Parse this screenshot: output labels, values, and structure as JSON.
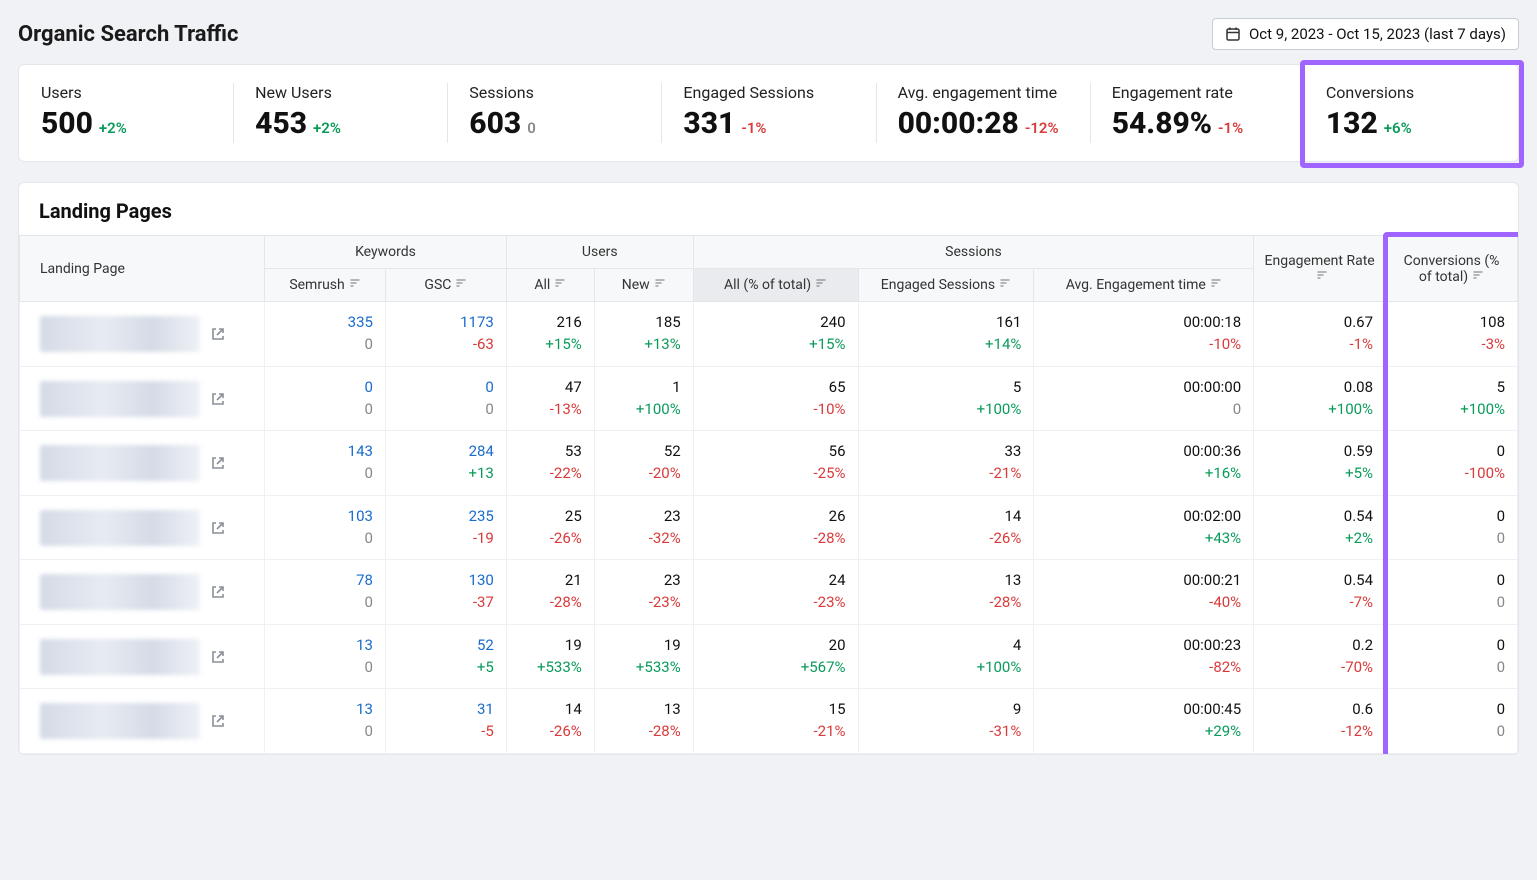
{
  "page": {
    "title": "Organic Search Traffic",
    "date_range": "Oct 9, 2023 - Oct 15, 2023 (last 7 days)"
  },
  "colors": {
    "positive": "#0a9b5b",
    "negative": "#d93a3a",
    "neutral": "#888888",
    "link": "#1a6bcc",
    "highlight": "#a064ff",
    "background": "#f0f2f5",
    "card_bg": "#ffffff",
    "border": "#e3e6ea",
    "header_bg": "#f7f8fa",
    "active_sort_bg": "#e9ebef"
  },
  "stats": [
    {
      "label": "Users",
      "value": "500",
      "delta": "+2%",
      "delta_sign": "pos"
    },
    {
      "label": "New Users",
      "value": "453",
      "delta": "+2%",
      "delta_sign": "pos"
    },
    {
      "label": "Sessions",
      "value": "603",
      "delta": "0",
      "delta_sign": "neutral"
    },
    {
      "label": "Engaged Sessions",
      "value": "331",
      "delta": "-1%",
      "delta_sign": "neg"
    },
    {
      "label": "Avg. engagement time",
      "value": "00:00:28",
      "delta": "-12%",
      "delta_sign": "neg"
    },
    {
      "label": "Engagement rate",
      "value": "54.89%",
      "delta": "-1%",
      "delta_sign": "neg"
    },
    {
      "label": "Conversions",
      "value": "132",
      "delta": "+6%",
      "delta_sign": "pos",
      "highlighted": true
    }
  ],
  "landing": {
    "title": "Landing Pages",
    "columns": {
      "landing_page": "Landing Page",
      "keywords": "Keywords",
      "users": "Users",
      "sessions": "Sessions",
      "engagement_rate": "Engagement Rate",
      "conversions": "Conversions (% of total)",
      "semrush": "Semrush",
      "gsc": "GSC",
      "all": "All",
      "new": "New",
      "all_pct": "All (% of total)",
      "engaged_sessions": "Engaged Sessions",
      "avg_engagement_time": "Avg. Engagement time"
    },
    "rows": [
      {
        "semrush": {
          "v": "335",
          "s": "0",
          "s_sign": "neutral"
        },
        "gsc": {
          "v": "1173",
          "s": "-63",
          "s_sign": "neg"
        },
        "all": {
          "v": "216",
          "s": "+15%",
          "s_sign": "pos"
        },
        "new": {
          "v": "185",
          "s": "+13%",
          "s_sign": "pos"
        },
        "all_pct": {
          "v": "240",
          "s": "+15%",
          "s_sign": "pos"
        },
        "eng": {
          "v": "161",
          "s": "+14%",
          "s_sign": "pos"
        },
        "avt": {
          "v": "00:00:18",
          "s": "-10%",
          "s_sign": "neg"
        },
        "er": {
          "v": "0.67",
          "s": "-1%",
          "s_sign": "neg"
        },
        "conv": {
          "v": "108",
          "s": "-3%",
          "s_sign": "neg"
        }
      },
      {
        "semrush": {
          "v": "0",
          "s": "0",
          "s_sign": "neutral"
        },
        "gsc": {
          "v": "0",
          "s": "0",
          "s_sign": "neutral"
        },
        "all": {
          "v": "47",
          "s": "-13%",
          "s_sign": "neg"
        },
        "new": {
          "v": "1",
          "s": "+100%",
          "s_sign": "pos"
        },
        "all_pct": {
          "v": "65",
          "s": "-10%",
          "s_sign": "neg"
        },
        "eng": {
          "v": "5",
          "s": "+100%",
          "s_sign": "pos"
        },
        "avt": {
          "v": "00:00:00",
          "s": "0",
          "s_sign": "neutral"
        },
        "er": {
          "v": "0.08",
          "s": "+100%",
          "s_sign": "pos"
        },
        "conv": {
          "v": "5",
          "s": "+100%",
          "s_sign": "pos"
        }
      },
      {
        "semrush": {
          "v": "143",
          "s": "0",
          "s_sign": "neutral"
        },
        "gsc": {
          "v": "284",
          "s": "+13",
          "s_sign": "pos"
        },
        "all": {
          "v": "53",
          "s": "-22%",
          "s_sign": "neg"
        },
        "new": {
          "v": "52",
          "s": "-20%",
          "s_sign": "neg"
        },
        "all_pct": {
          "v": "56",
          "s": "-25%",
          "s_sign": "neg"
        },
        "eng": {
          "v": "33",
          "s": "-21%",
          "s_sign": "neg"
        },
        "avt": {
          "v": "00:00:36",
          "s": "+16%",
          "s_sign": "pos"
        },
        "er": {
          "v": "0.59",
          "s": "+5%",
          "s_sign": "pos"
        },
        "conv": {
          "v": "0",
          "s": "-100%",
          "s_sign": "neg"
        }
      },
      {
        "semrush": {
          "v": "103",
          "s": "0",
          "s_sign": "neutral"
        },
        "gsc": {
          "v": "235",
          "s": "-19",
          "s_sign": "neg"
        },
        "all": {
          "v": "25",
          "s": "-26%",
          "s_sign": "neg"
        },
        "new": {
          "v": "23",
          "s": "-32%",
          "s_sign": "neg"
        },
        "all_pct": {
          "v": "26",
          "s": "-28%",
          "s_sign": "neg"
        },
        "eng": {
          "v": "14",
          "s": "-26%",
          "s_sign": "neg"
        },
        "avt": {
          "v": "00:02:00",
          "s": "+43%",
          "s_sign": "pos"
        },
        "er": {
          "v": "0.54",
          "s": "+2%",
          "s_sign": "pos"
        },
        "conv": {
          "v": "0",
          "s": "0",
          "s_sign": "neutral"
        }
      },
      {
        "semrush": {
          "v": "78",
          "s": "0",
          "s_sign": "neutral"
        },
        "gsc": {
          "v": "130",
          "s": "-37",
          "s_sign": "neg"
        },
        "all": {
          "v": "21",
          "s": "-28%",
          "s_sign": "neg"
        },
        "new": {
          "v": "23",
          "s": "-23%",
          "s_sign": "neg"
        },
        "all_pct": {
          "v": "24",
          "s": "-23%",
          "s_sign": "neg"
        },
        "eng": {
          "v": "13",
          "s": "-28%",
          "s_sign": "neg"
        },
        "avt": {
          "v": "00:00:21",
          "s": "-40%",
          "s_sign": "neg"
        },
        "er": {
          "v": "0.54",
          "s": "-7%",
          "s_sign": "neg"
        },
        "conv": {
          "v": "0",
          "s": "0",
          "s_sign": "neutral"
        }
      },
      {
        "semrush": {
          "v": "13",
          "s": "0",
          "s_sign": "neutral"
        },
        "gsc": {
          "v": "52",
          "s": "+5",
          "s_sign": "pos"
        },
        "all": {
          "v": "19",
          "s": "+533%",
          "s_sign": "pos"
        },
        "new": {
          "v": "19",
          "s": "+533%",
          "s_sign": "pos"
        },
        "all_pct": {
          "v": "20",
          "s": "+567%",
          "s_sign": "pos"
        },
        "eng": {
          "v": "4",
          "s": "+100%",
          "s_sign": "pos"
        },
        "avt": {
          "v": "00:00:23",
          "s": "-82%",
          "s_sign": "neg"
        },
        "er": {
          "v": "0.2",
          "s": "-70%",
          "s_sign": "neg"
        },
        "conv": {
          "v": "0",
          "s": "0",
          "s_sign": "neutral"
        }
      },
      {
        "semrush": {
          "v": "13",
          "s": "0",
          "s_sign": "neutral"
        },
        "gsc": {
          "v": "31",
          "s": "-5",
          "s_sign": "neg"
        },
        "all": {
          "v": "14",
          "s": "-26%",
          "s_sign": "neg"
        },
        "new": {
          "v": "13",
          "s": "-28%",
          "s_sign": "neg"
        },
        "all_pct": {
          "v": "15",
          "s": "-21%",
          "s_sign": "neg"
        },
        "eng": {
          "v": "9",
          "s": "-31%",
          "s_sign": "neg"
        },
        "avt": {
          "v": "00:00:45",
          "s": "+29%",
          "s_sign": "pos"
        },
        "er": {
          "v": "0.6",
          "s": "-12%",
          "s_sign": "neg"
        },
        "conv": {
          "v": "0",
          "s": "0",
          "s_sign": "neutral"
        }
      }
    ]
  }
}
